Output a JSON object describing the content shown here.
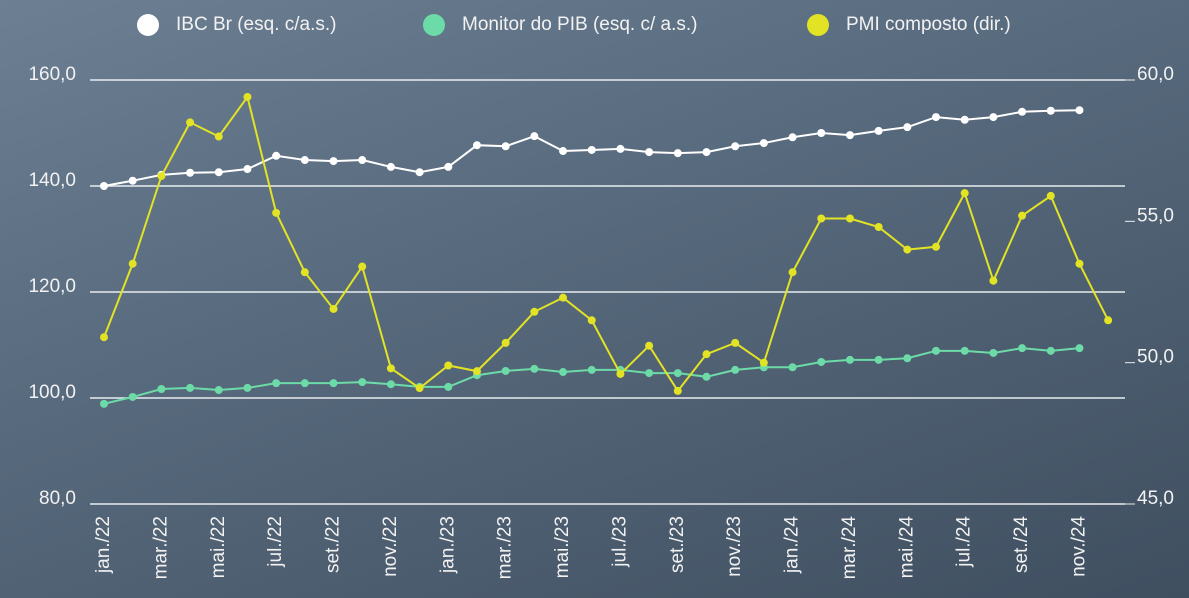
{
  "chart_data": {
    "type": "line",
    "categories": [
      "jan./22",
      null,
      "mar./22",
      null,
      "mai./22",
      null,
      "jul./22",
      null,
      "set./22",
      null,
      "nov./22",
      null,
      "jan./23",
      null,
      "mar./23",
      null,
      "mai./23",
      null,
      "jul./23",
      null,
      "set./23",
      null,
      "nov./23",
      null,
      "jan./24",
      null,
      "mar./24",
      null,
      "mai./24",
      null,
      "jul./24",
      null,
      "set./24",
      null,
      "nov./24",
      null
    ],
    "series": [
      {
        "name": "IBC Br (esq. c/a.s.)",
        "color": "#ffffff",
        "values": [
          140.0,
          141.0,
          142.1,
          142.5,
          142.6,
          143.2,
          145.7,
          144.9,
          144.7,
          144.9,
          143.6,
          142.6,
          143.6,
          147.7,
          147.5,
          149.4,
          146.6,
          146.8,
          147.0,
          146.4,
          146.2,
          146.4,
          147.5,
          148.1,
          149.2,
          150.0,
          149.6,
          150.4,
          151.1,
          153.0,
          152.5,
          153.0,
          154.0,
          154.2,
          154.3,
          null
        ]
      },
      {
        "name": "Monitor do PIB (esq. c/ a.s.)",
        "color": "#6ddba8",
        "values": [
          98.9,
          100.2,
          101.7,
          101.9,
          101.5,
          101.9,
          102.8,
          102.8,
          102.8,
          103.0,
          102.6,
          102.1,
          102.1,
          104.3,
          105.1,
          105.5,
          104.9,
          105.3,
          105.3,
          104.7,
          104.7,
          104.0,
          105.3,
          105.8,
          105.8,
          106.8,
          107.2,
          107.2,
          107.5,
          108.9,
          108.9,
          108.5,
          109.4,
          108.9,
          109.4,
          null
        ]
      },
      {
        "name": "PMI composto (dir.)",
        "color": "#e2e324",
        "axis": "y2",
        "values": [
          50.9,
          53.5,
          56.6,
          58.5,
          58.0,
          59.4,
          55.3,
          53.2,
          51.9,
          53.4,
          49.8,
          49.1,
          49.9,
          49.7,
          50.7,
          51.8,
          52.3,
          51.5,
          49.6,
          50.6,
          49.0,
          50.3,
          50.7,
          50.0,
          53.2,
          55.1,
          55.1,
          54.8,
          54.0,
          54.1,
          56.0,
          52.9,
          55.2,
          55.9,
          53.5,
          51.5
        ]
      }
    ],
    "ylim": [
      80,
      160
    ],
    "yticks": [
      {
        "value": 80,
        "label": "80,0"
      },
      {
        "value": 100,
        "label": "100,0"
      },
      {
        "value": 120,
        "label": "120,0"
      },
      {
        "value": 140,
        "label": "140,0"
      },
      {
        "value": 160,
        "label": "160,0"
      }
    ],
    "y2lim": [
      45,
      60
    ],
    "y2ticks": [
      {
        "value": 45,
        "label": "45,0"
      },
      {
        "value": 50,
        "label": "50,0"
      },
      {
        "value": 55,
        "label": "55,0"
      },
      {
        "value": 60,
        "label": "60,0"
      }
    ],
    "grid": true,
    "legend": "top"
  }
}
